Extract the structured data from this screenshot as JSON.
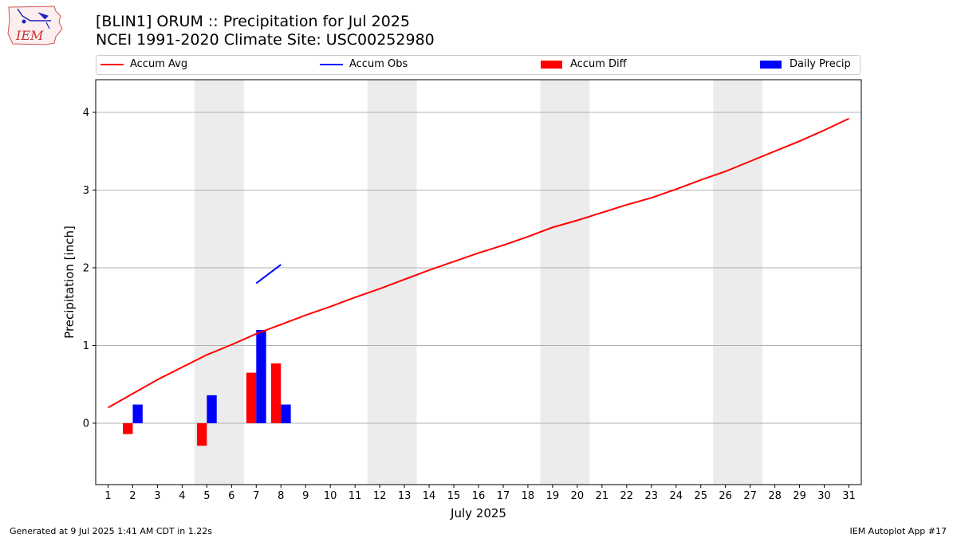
{
  "header": {
    "title_line1": "[BLIN1] ORUM :: Precipitation for Jul 2025",
    "title_line2": "NCEI 1991-2020 Climate Site: USC00252980",
    "logo_text": "IEM",
    "logo_icon": "iem-weather-logo"
  },
  "legend": {
    "items": [
      {
        "label": "Accum Avg",
        "kind": "line",
        "color": "#ff0000"
      },
      {
        "label": "Accum Obs",
        "kind": "line",
        "color": "#0000ff"
      },
      {
        "label": "Accum Diff",
        "kind": "box",
        "color": "#ff0000"
      },
      {
        "label": "Daily Precip",
        "kind": "box",
        "color": "#0000ff"
      }
    ]
  },
  "footer": {
    "left": "Generated at 9 Jul 2025 1:41 AM CDT in 1.22s",
    "right": "IEM Autoplot App #17"
  },
  "chart_data": {
    "type": "bar",
    "xlabel": "July 2025",
    "ylabel": "Precipitation [inch]",
    "x": [
      1,
      2,
      3,
      4,
      5,
      6,
      7,
      8,
      9,
      10,
      11,
      12,
      13,
      14,
      15,
      16,
      17,
      18,
      19,
      20,
      21,
      22,
      23,
      24,
      25,
      26,
      27,
      28,
      29,
      30,
      31
    ],
    "xticks": [
      "1",
      "2",
      "3",
      "4",
      "5",
      "6",
      "7",
      "8",
      "9",
      "10",
      "11",
      "12",
      "13",
      "14",
      "15",
      "16",
      "17",
      "18",
      "19",
      "20",
      "21",
      "22",
      "23",
      "24",
      "25",
      "26",
      "27",
      "28",
      "29",
      "30",
      "31"
    ],
    "yticks": [
      0,
      1,
      2,
      3,
      4
    ],
    "ylim": [
      -0.79,
      4.42
    ],
    "xlim": [
      0.5,
      31.5
    ],
    "grid": "horizontal",
    "weekend_shading": [
      [
        4.5,
        6.5
      ],
      [
        11.5,
        13.5
      ],
      [
        18.5,
        20.5
      ],
      [
        25.5,
        27.5
      ]
    ],
    "shade_color": "#ececec",
    "series": [
      {
        "name": "Accum Avg",
        "kind": "line",
        "color": "#ff0000",
        "x": [
          1,
          2,
          3,
          4,
          5,
          6,
          7,
          8,
          9,
          10,
          11,
          12,
          13,
          14,
          15,
          16,
          17,
          18,
          19,
          20,
          21,
          22,
          23,
          24,
          25,
          26,
          27,
          28,
          29,
          30,
          31
        ],
        "values": [
          0.2,
          0.38,
          0.56,
          0.72,
          0.88,
          1.01,
          1.15,
          1.27,
          1.39,
          1.5,
          1.62,
          1.73,
          1.85,
          1.97,
          2.08,
          2.19,
          2.29,
          2.4,
          2.52,
          2.61,
          2.71,
          2.81,
          2.9,
          3.01,
          3.13,
          3.24,
          3.37,
          3.5,
          3.63,
          3.77,
          3.92
        ]
      },
      {
        "name": "Accum Obs",
        "kind": "line",
        "color": "#0000ff",
        "x": [
          7,
          8
        ],
        "values": [
          1.8,
          2.04
        ]
      },
      {
        "name": "Accum Diff",
        "kind": "bar",
        "color": "#ff0000",
        "offset": -0.2,
        "x": [
          2,
          5,
          7,
          8
        ],
        "values": [
          -0.14,
          -0.29,
          0.65,
          0.77
        ]
      },
      {
        "name": "Daily Precip",
        "kind": "bar",
        "color": "#0000ff",
        "offset": 0.2,
        "x": [
          2,
          5,
          7,
          8
        ],
        "values": [
          0.24,
          0.36,
          1.2,
          0.24
        ]
      }
    ]
  }
}
